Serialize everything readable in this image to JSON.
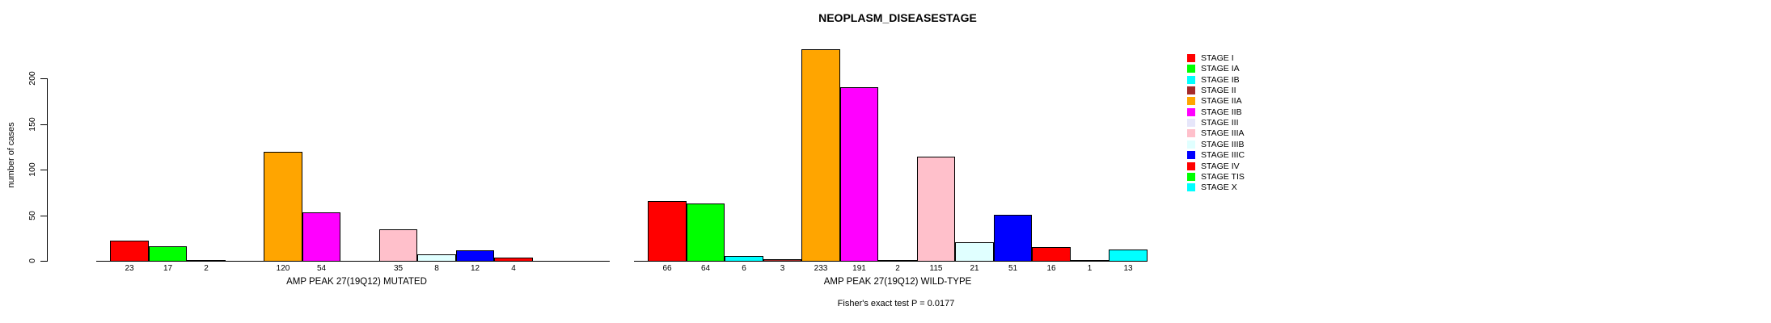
{
  "title": "NEOPLASM_DISEASESTAGE",
  "footer": "Fisher's exact test P = 0.0177",
  "legend": [
    {
      "label": "STAGE I",
      "color": "#FF0000"
    },
    {
      "label": "STAGE IA",
      "color": "#00FF00"
    },
    {
      "label": "STAGE IB",
      "color": "#00FFFF"
    },
    {
      "label": "STAGE II",
      "color": "#A52A2A"
    },
    {
      "label": "STAGE IIA",
      "color": "#FFA500"
    },
    {
      "label": "STAGE IIB",
      "color": "#FF00FF"
    },
    {
      "label": "STAGE III",
      "color": "#E6E6FA"
    },
    {
      "label": "STAGE IIIA",
      "color": "#FFC0CB"
    },
    {
      "label": "STAGE IIIB",
      "color": "#E0FFFF"
    },
    {
      "label": "STAGE IIIC",
      "color": "#0000FF"
    },
    {
      "label": "STAGE IV",
      "color": "#FF0000"
    },
    {
      "label": "STAGE TIS",
      "color": "#00FF00"
    },
    {
      "label": "STAGE X",
      "color": "#00FFFF"
    }
  ],
  "chart_data": {
    "type": "bar",
    "title": "NEOPLASM_DISEASESTAGE",
    "ylabel": "number of cases",
    "ylim": [
      0,
      200
    ],
    "yticks": [
      0,
      50,
      100,
      150,
      200
    ],
    "grid": false,
    "legend_position": "right",
    "categories": [
      "STAGE I",
      "STAGE IA",
      "STAGE IB",
      "STAGE II",
      "STAGE IIA",
      "STAGE IIB",
      "STAGE III",
      "STAGE IIIA",
      "STAGE IIIB",
      "STAGE IIIC",
      "STAGE IV",
      "STAGE TIS",
      "STAGE X"
    ],
    "palette": [
      "#FF0000",
      "#00FF00",
      "#00FFFF",
      "#A52A2A",
      "#FFA500",
      "#FF00FF",
      "#E6E6FA",
      "#FFC0CB",
      "#E0FFFF",
      "#0000FF",
      "#FF0000",
      "#00FF00",
      "#00FFFF"
    ],
    "series": [
      {
        "name": "AMP PEAK 27(19Q12) MUTATED",
        "values": [
          23,
          17,
          2,
          0,
          120,
          54,
          0,
          35,
          8,
          12,
          4,
          0,
          0
        ]
      },
      {
        "name": "AMP PEAK 27(19Q12) WILD-TYPE",
        "values": [
          66,
          64,
          6,
          3,
          233,
          191,
          2,
          115,
          21,
          51,
          16,
          1,
          13
        ]
      }
    ],
    "value_labels_shown": true,
    "zero_bars_hidden": true,
    "annotation": "Fisher's exact test P = 0.0177"
  }
}
